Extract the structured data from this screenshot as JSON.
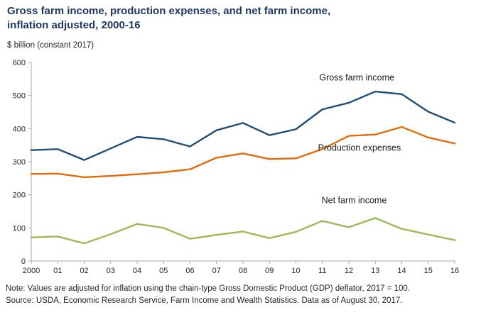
{
  "title_line1": "Gross farm income, production expenses, and net farm income,",
  "title_line2": "inflation adjusted, 2000-16",
  "unit_label": "$ billion (constant 2017)",
  "note": "Note: Values are adjusted for inflation using the chain-type Gross Domestic Product (GDP) deflator, 2017 = 100.",
  "source": "Source: USDA, Economic Research Service, Farm Income and Wealth Statistics. Data as of August 30, 2017.",
  "colors": {
    "title": "#1f3864",
    "axis": "#a6a6a6",
    "tick_text": "#262626"
  },
  "chart_data": {
    "type": "line",
    "title": "Gross farm income, production expenses, and net farm income, inflation adjusted, 2000-16",
    "xlabel": "",
    "ylabel": "$ billion (constant 2017)",
    "ylim": [
      0,
      600
    ],
    "ytick_step": 100,
    "grid": false,
    "legend_position": "inline-annotations",
    "axis_color": "#a6a6a6",
    "categories": [
      "2000",
      "01",
      "02",
      "03",
      "04",
      "05",
      "06",
      "07",
      "08",
      "09",
      "10",
      "11",
      "12",
      "13",
      "14",
      "15",
      "16"
    ],
    "series": [
      {
        "id": "gross-farm-income",
        "name": "Gross farm income",
        "color": "#1f4e79",
        "values": [
          335,
          338,
          305,
          340,
          375,
          368,
          346,
          395,
          417,
          380,
          398,
          458,
          478,
          512,
          504,
          451,
          418
        ],
        "label_pos": {
          "x": 12.3,
          "y": 545
        }
      },
      {
        "id": "production-expenses",
        "name": "Production expenses",
        "color": "#e36c09",
        "values": [
          263,
          264,
          253,
          257,
          262,
          268,
          277,
          312,
          325,
          308,
          310,
          338,
          378,
          382,
          405,
          373,
          355
        ],
        "label_pos": {
          "x": 12.4,
          "y": 333
        }
      },
      {
        "id": "net-farm-income",
        "name": "Net farm income",
        "color": "#9bbb59",
        "values": [
          71,
          74,
          53,
          81,
          112,
          100,
          67,
          79,
          89,
          69,
          88,
          121,
          102,
          130,
          97,
          80,
          63
        ],
        "label_pos": {
          "x": 12.2,
          "y": 175
        }
      }
    ]
  }
}
